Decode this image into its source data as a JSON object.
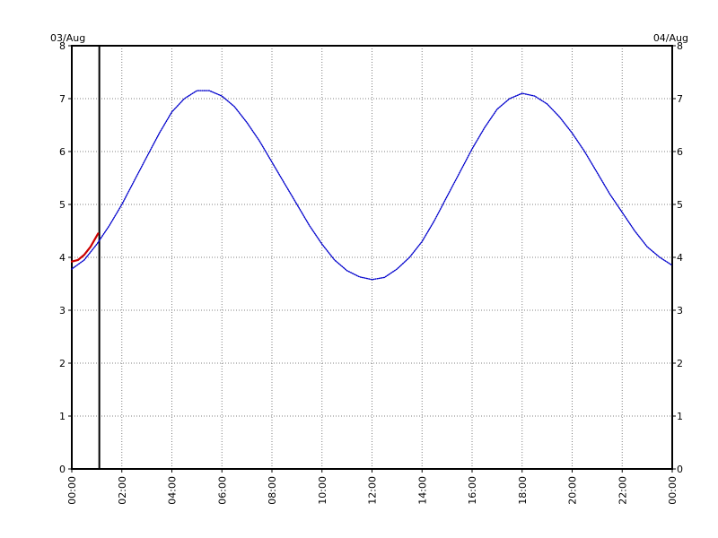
{
  "chart_data": {
    "type": "line",
    "date_left": "03/Aug",
    "date_right": "04/Aug",
    "x_ticks": [
      "00:00",
      "02:00",
      "04:00",
      "06:00",
      "08:00",
      "10:00",
      "12:00",
      "14:00",
      "16:00",
      "18:00",
      "20:00",
      "22:00",
      "00:00"
    ],
    "y_ticks": [
      "0",
      "1",
      "2",
      "3",
      "4",
      "5",
      "6",
      "7",
      "8"
    ],
    "xlim_hours": [
      0,
      24
    ],
    "ylim": [
      0,
      8
    ],
    "grid": true,
    "current_time_hours": 1.1,
    "series": [
      {
        "color": "#0000cc",
        "style": "dotted",
        "points": [
          [
            0,
            3.78
          ],
          [
            0.5,
            3.95
          ],
          [
            1,
            4.25
          ],
          [
            1.5,
            4.6
          ],
          [
            2,
            5.0
          ],
          [
            2.5,
            5.45
          ],
          [
            3,
            5.9
          ],
          [
            3.5,
            6.35
          ],
          [
            4,
            6.75
          ],
          [
            4.5,
            7.0
          ],
          [
            5,
            7.15
          ],
          [
            5.5,
            7.15
          ],
          [
            6,
            7.05
          ],
          [
            6.5,
            6.85
          ],
          [
            7,
            6.55
          ],
          [
            7.5,
            6.2
          ],
          [
            8,
            5.8
          ],
          [
            8.5,
            5.4
          ],
          [
            9,
            5.0
          ],
          [
            9.5,
            4.6
          ],
          [
            10,
            4.25
          ],
          [
            10.5,
            3.95
          ],
          [
            11,
            3.75
          ],
          [
            11.5,
            3.63
          ],
          [
            12,
            3.58
          ],
          [
            12.5,
            3.62
          ],
          [
            13,
            3.78
          ],
          [
            13.5,
            4.0
          ],
          [
            14,
            4.3
          ],
          [
            14.5,
            4.7
          ],
          [
            15,
            5.15
          ],
          [
            15.5,
            5.6
          ],
          [
            16,
            6.05
          ],
          [
            16.5,
            6.45
          ],
          [
            17,
            6.8
          ],
          [
            17.5,
            7.0
          ],
          [
            18,
            7.1
          ],
          [
            18.5,
            7.05
          ],
          [
            19,
            6.9
          ],
          [
            19.5,
            6.65
          ],
          [
            20,
            6.35
          ],
          [
            20.5,
            6.0
          ],
          [
            21,
            5.6
          ],
          [
            21.5,
            5.2
          ],
          [
            22,
            4.85
          ],
          [
            22.5,
            4.5
          ],
          [
            23,
            4.2
          ],
          [
            23.5,
            4.0
          ],
          [
            24,
            3.85
          ]
        ]
      },
      {
        "color": "#cc0000",
        "style": "solid",
        "points": [
          [
            0,
            3.92
          ],
          [
            0.25,
            3.95
          ],
          [
            0.5,
            4.05
          ],
          [
            0.75,
            4.2
          ],
          [
            1.05,
            4.45
          ]
        ]
      }
    ]
  }
}
